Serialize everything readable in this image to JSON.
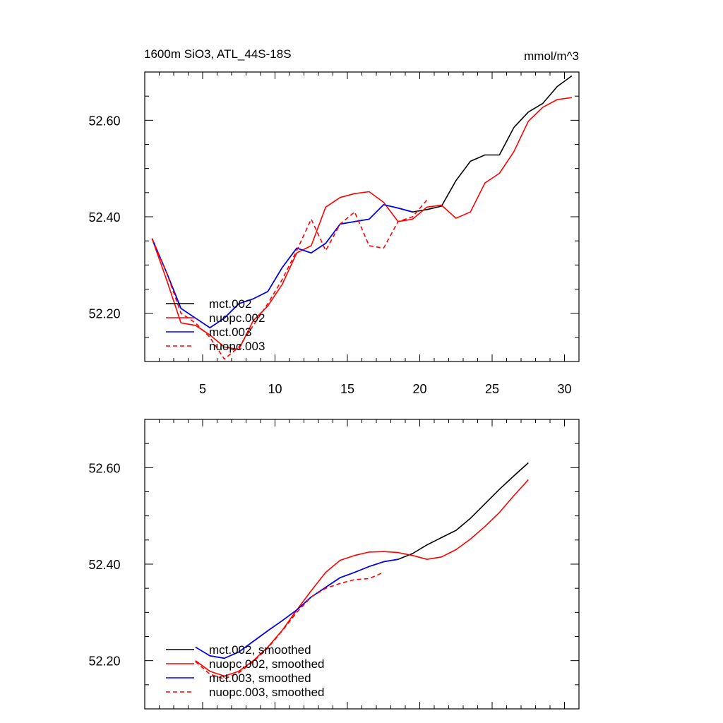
{
  "chart_data": [
    {
      "type": "line",
      "title_left": "1600m SiO3, ATL_44S-18S",
      "title_right": "mmol/m^3",
      "xlabel": "",
      "ylabel": "",
      "xlim": [
        1,
        31
      ],
      "ylim": [
        52.1,
        52.7
      ],
      "xticks": [
        5,
        10,
        15,
        20,
        25,
        30
      ],
      "yticks": [
        52.2,
        52.4,
        52.6
      ],
      "ytick_labels": [
        "52.20",
        "52.40",
        "52.60"
      ],
      "legend_position": "lower-left",
      "series": [
        {
          "name": "mct.002",
          "color": "#000000",
          "dash": "solid",
          "x": [
            1.5,
            2.5,
            3.5,
            4.5,
            5.5,
            6.5,
            7.5,
            8.5,
            9.5,
            10.5,
            11.5,
            12.5,
            13.5,
            14.5,
            15.5,
            16.5,
            17.5,
            18.5,
            19.5,
            20.5,
            21.5,
            22.5,
            23.5,
            24.5,
            25.5,
            26.5,
            27.5,
            28.5,
            29.5,
            30.5
          ],
          "values": [
            52.355,
            52.285,
            52.21,
            52.19,
            52.17,
            52.19,
            52.22,
            52.23,
            52.245,
            52.295,
            52.335,
            52.325,
            52.345,
            52.385,
            52.39,
            52.395,
            52.425,
            52.418,
            52.41,
            52.415,
            52.422,
            52.475,
            52.515,
            52.528,
            52.528,
            52.585,
            52.617,
            52.635,
            52.67,
            52.692
          ]
        },
        {
          "name": "nuopc.002",
          "color": "#ff0000",
          "dash": "solid",
          "x": [
            1.5,
            2.5,
            3.5,
            4.5,
            5.5,
            6.5,
            7.5,
            8.5,
            9.5,
            10.5,
            11.5,
            12.5,
            13.5,
            14.5,
            15.5,
            16.5,
            17.5,
            18.5,
            19.5,
            20.5,
            21.5,
            22.5,
            23.5,
            24.5,
            25.5,
            26.5,
            27.5,
            28.5,
            29.5,
            30.5
          ],
          "values": [
            52.355,
            52.27,
            52.18,
            52.175,
            52.155,
            52.13,
            52.125,
            52.185,
            52.215,
            52.26,
            52.325,
            52.34,
            52.42,
            52.44,
            52.448,
            52.452,
            52.43,
            52.39,
            52.395,
            52.42,
            52.424,
            52.397,
            52.41,
            52.47,
            52.49,
            52.535,
            52.598,
            52.627,
            52.643,
            52.647
          ]
        },
        {
          "name": "mct.003",
          "color": "#0000ff",
          "dash": "solid",
          "x": [
            1.5,
            2.5,
            3.5,
            4.5,
            5.5,
            6.5,
            7.5,
            8.5,
            9.5,
            10.5,
            11.5,
            12.5,
            13.5,
            14.5,
            15.5,
            16.5,
            17.5,
            18.5,
            19.5
          ],
          "values": [
            52.355,
            52.285,
            52.21,
            52.19,
            52.17,
            52.19,
            52.22,
            52.23,
            52.245,
            52.295,
            52.335,
            52.325,
            52.345,
            52.385,
            52.39,
            52.395,
            52.425,
            52.418,
            52.41
          ]
        },
        {
          "name": "nuopc.003",
          "color": "#ff0000",
          "dash": "dashed",
          "x": [
            1.5,
            2.5,
            3.5,
            4.5,
            5.5,
            6.5,
            7.5,
            8.5,
            9.5,
            10.5,
            11.5,
            12.5,
            13.5,
            14.5,
            15.5,
            16.5,
            17.5,
            18.5,
            19.5,
            20.5
          ],
          "values": [
            52.355,
            52.285,
            52.2,
            52.18,
            52.15,
            52.105,
            52.13,
            52.175,
            52.22,
            52.27,
            52.33,
            52.395,
            52.33,
            52.385,
            52.41,
            52.34,
            52.335,
            52.39,
            52.4,
            52.435
          ]
        }
      ]
    },
    {
      "type": "line",
      "title_left": "",
      "title_right": "",
      "xlabel": "",
      "ylabel": "",
      "xlim": [
        1,
        31
      ],
      "ylim": [
        52.1,
        52.7
      ],
      "xticks": [
        5,
        10,
        15,
        20,
        25,
        30
      ],
      "yticks": [
        52.2,
        52.4,
        52.6
      ],
      "ytick_labels": [
        "52.20",
        "52.40",
        "52.60"
      ],
      "legend_position": "lower-left",
      "series": [
        {
          "name": "mct.002, smoothed",
          "color": "#000000",
          "dash": "solid",
          "x": [
            4.5,
            5.5,
            6.5,
            7.5,
            8.5,
            9.5,
            10.5,
            11.5,
            12.5,
            13.5,
            14.5,
            15.5,
            16.5,
            17.5,
            18.5,
            19.5,
            20.5,
            21.5,
            22.5,
            23.5,
            24.5,
            25.5,
            26.5,
            27.5
          ],
          "values": [
            52.228,
            52.21,
            52.205,
            52.218,
            52.24,
            52.262,
            52.283,
            52.305,
            52.332,
            52.352,
            52.372,
            52.383,
            52.395,
            52.405,
            52.41,
            52.422,
            52.44,
            52.455,
            52.47,
            52.495,
            52.525,
            52.555,
            52.583,
            52.61
          ]
        },
        {
          "name": "nuopc.002, smoothed",
          "color": "#ff0000",
          "dash": "solid",
          "x": [
            4.5,
            5.5,
            6.5,
            7.5,
            8.5,
            9.5,
            10.5,
            11.5,
            12.5,
            13.5,
            14.5,
            15.5,
            16.5,
            17.5,
            18.5,
            19.5,
            20.5,
            21.5,
            22.5,
            23.5,
            24.5,
            25.5,
            26.5,
            27.5
          ],
          "values": [
            52.2,
            52.178,
            52.168,
            52.178,
            52.2,
            52.228,
            52.263,
            52.305,
            52.345,
            52.383,
            52.408,
            52.418,
            52.425,
            52.426,
            52.424,
            52.418,
            52.41,
            52.415,
            52.43,
            52.452,
            52.478,
            52.507,
            52.542,
            52.575
          ]
        },
        {
          "name": "mct.003, smoothed",
          "color": "#0000ff",
          "dash": "solid",
          "x": [
            4.5,
            5.5,
            6.5,
            7.5,
            8.5,
            9.5,
            10.5,
            11.5,
            12.5,
            13.5,
            14.5,
            15.5,
            16.5,
            17.5,
            18.5
          ],
          "values": [
            52.228,
            52.21,
            52.205,
            52.218,
            52.24,
            52.262,
            52.283,
            52.305,
            52.332,
            52.352,
            52.372,
            52.383,
            52.395,
            52.405,
            52.41
          ]
        },
        {
          "name": "nuopc.003, smoothed",
          "color": "#ff0000",
          "dash": "dashed",
          "x": [
            4.5,
            5.5,
            6.5,
            7.5,
            8.5,
            9.5,
            10.5,
            11.5,
            12.5,
            13.5,
            14.5,
            15.5,
            16.5,
            17.5
          ],
          "values": [
            52.198,
            52.172,
            52.162,
            52.175,
            52.198,
            52.226,
            52.262,
            52.3,
            52.332,
            52.35,
            52.36,
            52.368,
            52.37,
            52.383
          ]
        }
      ]
    }
  ]
}
